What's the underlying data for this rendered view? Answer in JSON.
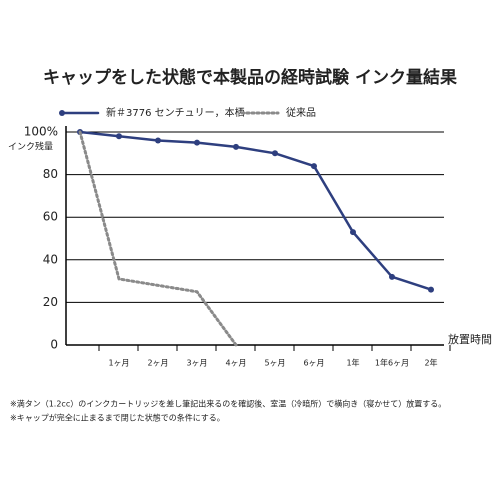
{
  "chart_data": {
    "type": "line",
    "title": "キャップをした状態で本製品の経時試験 インク量結果",
    "y_label": "インク残量",
    "x_label": "放置時間",
    "categories": [
      null,
      "1ヶ月",
      "2ヶ月",
      "3ヶ月",
      "4ヶ月",
      "5ヶ月",
      "6ヶ月",
      "1年",
      "1年6ヶ月",
      "2年"
    ],
    "series": [
      {
        "name": "新＃3776 センチュリー，本栖",
        "color": "#2e3f7f",
        "values": [
          100,
          98,
          96,
          95,
          93,
          90,
          84,
          53,
          32,
          26
        ]
      },
      {
        "name": "従来品",
        "color": "#8a8a8a",
        "values": [
          100,
          31,
          28,
          25,
          0,
          null,
          null,
          null,
          null,
          null
        ]
      }
    ],
    "ylim": [
      0,
      100
    ],
    "yticks": [
      0,
      20,
      40,
      60,
      80,
      {
        "value": 100,
        "label": "100%"
      }
    ],
    "notes": [
      "※満タン（1.2cc）のインクカートリッジを差し筆記出来るのを確認後、室温（冷暗所）で横向き（寝かせて）放置する。",
      "※キャップが完全に止まるまで閉じた状態での条件にする。"
    ]
  }
}
